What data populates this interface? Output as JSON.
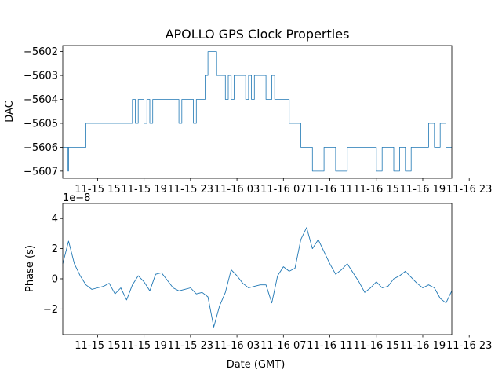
{
  "chart_data": [
    {
      "type": "line",
      "title": "APOLLO GPS Clock Properties",
      "ylabel": "DAC",
      "xlabel": "",
      "ylim": [
        -5607.3,
        -5601.75
      ],
      "xlim": [
        0,
        67
      ],
      "y_ticks": [
        -5607,
        -5606,
        -5605,
        -5604,
        -5603,
        -5602
      ],
      "x_ticks": [
        {
          "x": 6,
          "label": "11-15 15"
        },
        {
          "x": 14,
          "label": "11-15 19"
        },
        {
          "x": 22,
          "label": "11-15 23"
        },
        {
          "x": 30,
          "label": "11-16 03"
        },
        {
          "x": 38,
          "label": "11-16 07"
        },
        {
          "x": 46,
          "label": "11-16 11"
        },
        {
          "x": 54,
          "label": "11-16 15"
        },
        {
          "x": 62,
          "label": "11-16 19"
        },
        {
          "x": 70,
          "label": "11-16 23"
        }
      ],
      "series": [
        {
          "name": "DAC",
          "color": "#1f77b4",
          "x": [
            0,
            0.5,
            0.9,
            1.0,
            4.0,
            6.5,
            7.0,
            11.5,
            12.0,
            12.5,
            13.0,
            14.0,
            14.5,
            15.0,
            15.5,
            16.5,
            17.0,
            20.0,
            20.5,
            21.0,
            22.0,
            22.5,
            23.0,
            23.5,
            24.0,
            24.5,
            25.0,
            26.5,
            27.0,
            28.0,
            28.5,
            29.0,
            29.5,
            30.0,
            31.5,
            32.0,
            32.5,
            33.0,
            34.0,
            35.0,
            36.0,
            36.5,
            37.0,
            38.0,
            39.0,
            40.5,
            41.0,
            42.0,
            43.0,
            45.0,
            46.0,
            47.0,
            49.0,
            50.0,
            51.0,
            52.0,
            53.0,
            54.0,
            55.0,
            56.0,
            57.0,
            58.0,
            59.0,
            60.0,
            62.5,
            63.0,
            64.0,
            65.0,
            66.0,
            67.0
          ],
          "y": [
            -5606,
            -5606,
            -5607,
            -5606,
            -5605,
            -5605,
            -5605,
            -5605,
            -5604,
            -5605,
            -5604,
            -5605,
            -5604,
            -5605,
            -5604,
            -5604,
            -5604,
            -5605,
            -5604,
            -5604,
            -5604,
            -5605,
            -5604,
            -5604,
            -5604,
            -5603,
            -5602,
            -5603,
            -5603,
            -5604,
            -5603,
            -5604,
            -5603,
            -5603,
            -5604,
            -5603,
            -5604,
            -5603,
            -5603,
            -5604,
            -5603,
            -5604,
            -5604,
            -5604,
            -5605,
            -5605,
            -5606,
            -5606,
            -5607,
            -5606,
            -5606,
            -5607,
            -5606,
            -5606,
            -5606,
            -5606,
            -5606,
            -5607,
            -5606,
            -5606,
            -5607,
            -5606,
            -5607,
            -5606,
            -5606,
            -5605,
            -5606,
            -5605,
            -5606,
            -5606
          ]
        }
      ]
    },
    {
      "type": "line",
      "title": "",
      "ylabel": "Phase (s)",
      "xlabel": "Date (GMT)",
      "scale_label": "1e−8",
      "ylim": [
        -3.7,
        5.0
      ],
      "xlim": [
        0,
        67
      ],
      "y_ticks": [
        -2,
        0,
        2,
        4
      ],
      "x_ticks": [
        {
          "x": 6,
          "label": "11-15 15"
        },
        {
          "x": 14,
          "label": "11-15 19"
        },
        {
          "x": 22,
          "label": "11-15 23"
        },
        {
          "x": 30,
          "label": "11-16 03"
        },
        {
          "x": 38,
          "label": "11-16 07"
        },
        {
          "x": 46,
          "label": "11-16 11"
        },
        {
          "x": 54,
          "label": "11-16 15"
        },
        {
          "x": 62,
          "label": "11-16 19"
        },
        {
          "x": 70,
          "label": "11-16 23"
        }
      ],
      "series": [
        {
          "name": "Phase",
          "color": "#1f77b4",
          "x": [
            0,
            1,
            2,
            3,
            4,
            5,
            6,
            7,
            8,
            9,
            10,
            11,
            12,
            13,
            14,
            15,
            16,
            17,
            18,
            19,
            20,
            21,
            22,
            23,
            24,
            25,
            26,
            27,
            28,
            29,
            30,
            31,
            32,
            33,
            34,
            35,
            36,
            37,
            38,
            39,
            40,
            41,
            42,
            43,
            44,
            45,
            46,
            47,
            48,
            49,
            50,
            51,
            52,
            53,
            54,
            55,
            56,
            57,
            58,
            59,
            60,
            61,
            62,
            63,
            64,
            65,
            66,
            67
          ],
          "y": [
            1.0,
            2.5,
            1.0,
            0.2,
            -0.4,
            -0.7,
            -0.6,
            -0.5,
            -0.3,
            -1.0,
            -0.6,
            -1.4,
            -0.4,
            0.2,
            -0.2,
            -0.8,
            0.3,
            0.4,
            -0.1,
            -0.6,
            -0.8,
            -0.7,
            -0.6,
            -1.0,
            -0.9,
            -1.2,
            -3.2,
            -1.8,
            -0.9,
            0.6,
            0.2,
            -0.3,
            -0.6,
            -0.5,
            -0.4,
            -0.4,
            -1.6,
            0.2,
            0.8,
            0.5,
            0.7,
            2.6,
            3.4,
            2.0,
            2.6,
            1.8,
            1.0,
            0.3,
            0.6,
            1.0,
            0.4,
            -0.2,
            -0.9,
            -0.6,
            -0.2,
            -0.6,
            -0.5,
            0.0,
            0.2,
            0.5,
            0.1,
            -0.3,
            -0.6,
            -0.4,
            -0.6,
            -1.3,
            -1.6,
            -0.8
          ]
        }
      ]
    }
  ]
}
